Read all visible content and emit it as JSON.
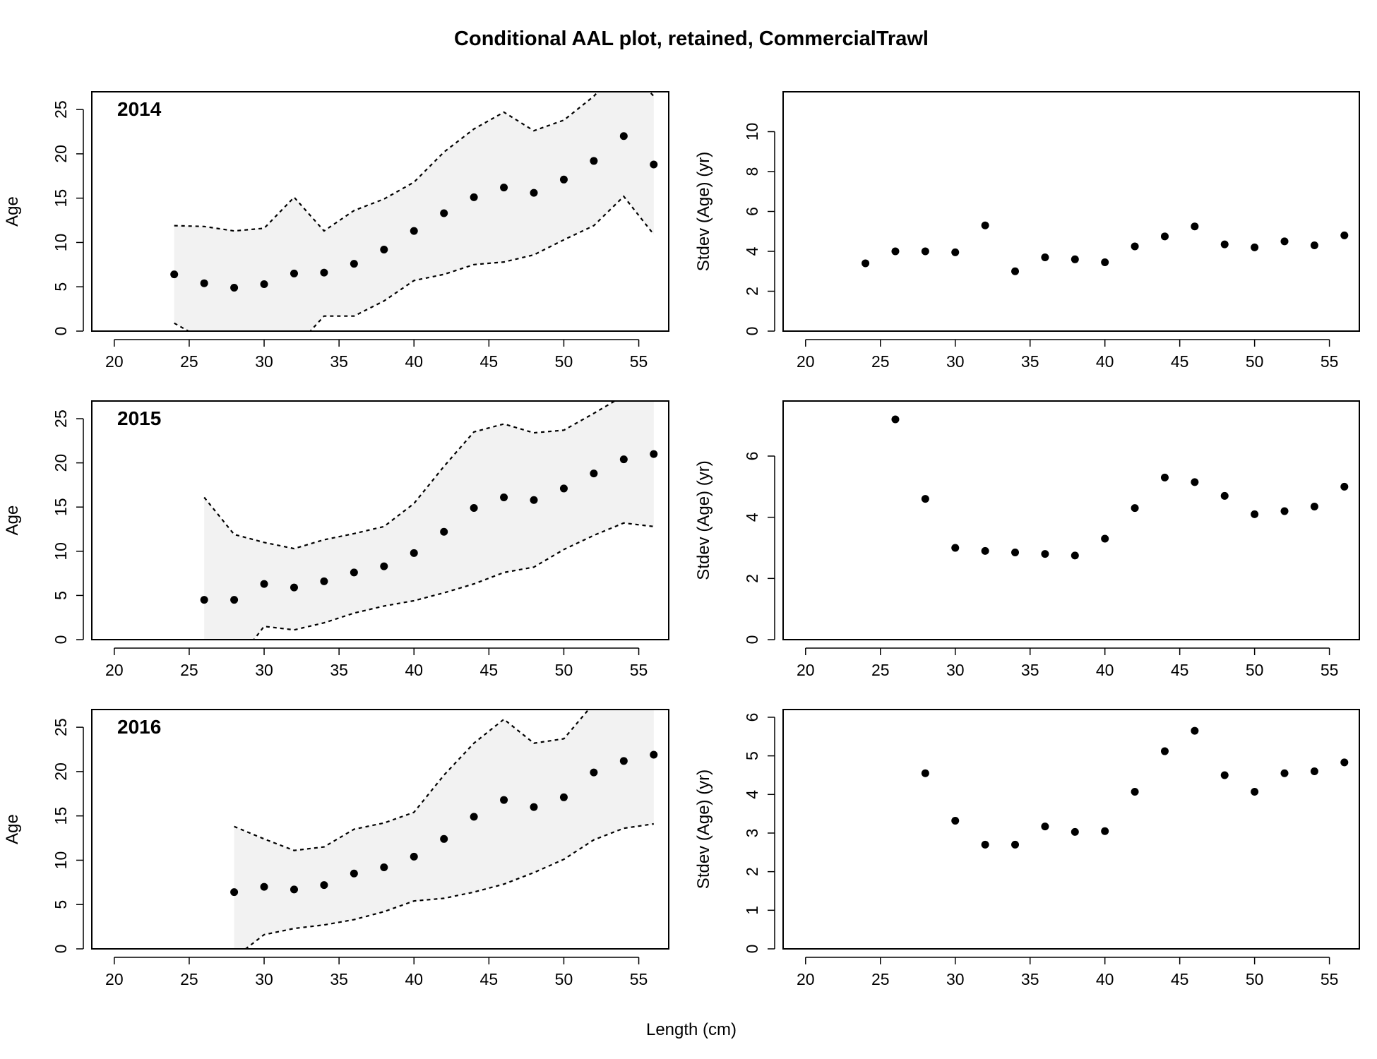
{
  "title": "Conditional AAL plot, retained, CommercialTrawl",
  "xlabel": "Length (cm)",
  "colors": {
    "band": "#f2f2f2",
    "points": "#000000",
    "frame": "#000000"
  },
  "chart_data": [
    {
      "type": "scatter",
      "panel": "age",
      "year_label": "2014",
      "ylabel": "Age",
      "xlim": [
        18.5,
        57
      ],
      "ylim": [
        0,
        27
      ],
      "x_ticks": [
        20,
        25,
        30,
        35,
        40,
        45,
        50,
        55
      ],
      "y_ticks": [
        0,
        5,
        10,
        15,
        20,
        25
      ],
      "x": [
        24,
        26,
        28,
        30,
        32,
        34,
        36,
        38,
        40,
        42,
        44,
        46,
        48,
        50,
        52,
        54,
        56
      ],
      "mean": [
        6.4,
        5.4,
        4.9,
        5.3,
        6.5,
        6.6,
        7.6,
        9.2,
        11.3,
        13.3,
        15.1,
        16.2,
        15.6,
        17.1,
        19.2,
        22.0,
        18.8
      ],
      "upper": [
        11.9,
        11.8,
        11.3,
        11.6,
        15.1,
        11.3,
        13.6,
        14.9,
        16.8,
        20.2,
        22.8,
        24.7,
        22.6,
        23.8,
        26.5,
        30.2,
        26.5
      ],
      "lower": [
        0.9,
        -1.0,
        -1.5,
        -1.0,
        -2.0,
        1.7,
        1.7,
        3.4,
        5.7,
        6.4,
        7.5,
        7.8,
        8.6,
        10.3,
        11.9,
        15.2,
        10.9
      ]
    },
    {
      "type": "scatter",
      "panel": "stdev",
      "year_label": "2014",
      "ylabel": "Stdev (Age) (yr)",
      "xlim": [
        18.5,
        57
      ],
      "ylim": [
        0,
        12
      ],
      "x_ticks": [
        20,
        25,
        30,
        35,
        40,
        45,
        50,
        55
      ],
      "y_ticks": [
        0,
        2,
        4,
        6,
        8,
        10
      ],
      "x": [
        24,
        26,
        28,
        30,
        32,
        34,
        36,
        38,
        40,
        42,
        44,
        46,
        48,
        50,
        52,
        54,
        56
      ],
      "values": [
        3.4,
        4.0,
        4.0,
        3.95,
        5.3,
        3.0,
        3.7,
        3.6,
        3.45,
        4.25,
        4.75,
        5.25,
        4.35,
        4.2,
        4.5,
        4.3,
        4.8
      ]
    },
    {
      "type": "scatter",
      "panel": "age",
      "year_label": "2015",
      "ylabel": "Age",
      "xlim": [
        18.5,
        57
      ],
      "ylim": [
        0,
        27
      ],
      "x_ticks": [
        20,
        25,
        30,
        35,
        40,
        45,
        50,
        55
      ],
      "y_ticks": [
        0,
        5,
        10,
        15,
        20,
        25
      ],
      "x": [
        26,
        28,
        30,
        32,
        34,
        36,
        38,
        40,
        42,
        44,
        46,
        48,
        50,
        52,
        54,
        56
      ],
      "mean": [
        4.5,
        4.5,
        6.3,
        5.9,
        6.6,
        7.6,
        8.3,
        9.8,
        12.2,
        14.9,
        16.1,
        15.8,
        17.1,
        18.8,
        20.4,
        21.0
      ],
      "upper": [
        16.1,
        11.9,
        11.0,
        10.3,
        11.3,
        12.0,
        12.8,
        15.4,
        19.6,
        23.5,
        24.4,
        23.4,
        23.7,
        25.6,
        27.6,
        29.1
      ],
      "lower": [
        -7.1,
        -2.9,
        1.5,
        1.1,
        1.9,
        3.0,
        3.8,
        4.4,
        5.3,
        6.3,
        7.6,
        8.2,
        10.2,
        11.8,
        13.2,
        12.8
      ]
    },
    {
      "type": "scatter",
      "panel": "stdev",
      "year_label": "2015",
      "ylabel": "Stdev (Age) (yr)",
      "xlim": [
        18.5,
        57
      ],
      "ylim": [
        0,
        7.8
      ],
      "x_ticks": [
        20,
        25,
        30,
        35,
        40,
        45,
        50,
        55
      ],
      "y_ticks": [
        0,
        2,
        4,
        6
      ],
      "x": [
        26,
        28,
        30,
        32,
        34,
        36,
        38,
        40,
        42,
        44,
        46,
        48,
        50,
        52,
        54,
        56
      ],
      "values": [
        7.2,
        4.6,
        3.0,
        2.9,
        2.85,
        2.8,
        2.75,
        3.3,
        4.3,
        5.3,
        5.15,
        4.7,
        4.1,
        4.2,
        4.35,
        5.0
      ]
    },
    {
      "type": "scatter",
      "panel": "age",
      "year_label": "2016",
      "ylabel": "Age",
      "xlim": [
        18.5,
        57
      ],
      "ylim": [
        0,
        27
      ],
      "x_ticks": [
        20,
        25,
        30,
        35,
        40,
        45,
        50,
        55
      ],
      "y_ticks": [
        0,
        5,
        10,
        15,
        20,
        25
      ],
      "x": [
        28,
        30,
        32,
        34,
        36,
        38,
        40,
        42,
        44,
        46,
        48,
        50,
        52,
        54,
        56
      ],
      "mean": [
        6.4,
        7.0,
        6.7,
        7.2,
        8.5,
        9.2,
        10.4,
        12.4,
        14.9,
        16.8,
        16.0,
        17.1,
        19.9,
        21.2,
        21.9
      ],
      "upper": [
        13.8,
        12.4,
        11.1,
        11.5,
        13.5,
        14.2,
        15.4,
        19.6,
        23.2,
        25.9,
        23.2,
        23.7,
        27.7,
        29.5,
        31.1
      ],
      "lower": [
        -1.0,
        1.6,
        2.3,
        2.7,
        3.3,
        4.2,
        5.4,
        5.7,
        6.4,
        7.3,
        8.6,
        10.1,
        12.3,
        13.6,
        14.1
      ]
    },
    {
      "type": "scatter",
      "panel": "stdev",
      "year_label": "2016",
      "ylabel": "Stdev (Age) (yr)",
      "xlim": [
        18.5,
        57
      ],
      "ylim": [
        0,
        6.2
      ],
      "x_ticks": [
        20,
        25,
        30,
        35,
        40,
        45,
        50,
        55
      ],
      "y_ticks": [
        0,
        1,
        2,
        3,
        4,
        5,
        6
      ],
      "x": [
        28,
        30,
        32,
        34,
        36,
        38,
        40,
        42,
        44,
        46,
        48,
        50,
        52,
        54,
        56
      ],
      "values": [
        4.55,
        3.32,
        2.7,
        2.7,
        3.17,
        3.03,
        3.05,
        4.07,
        5.12,
        5.65,
        4.5,
        4.07,
        4.55,
        4.6,
        4.83
      ]
    }
  ]
}
